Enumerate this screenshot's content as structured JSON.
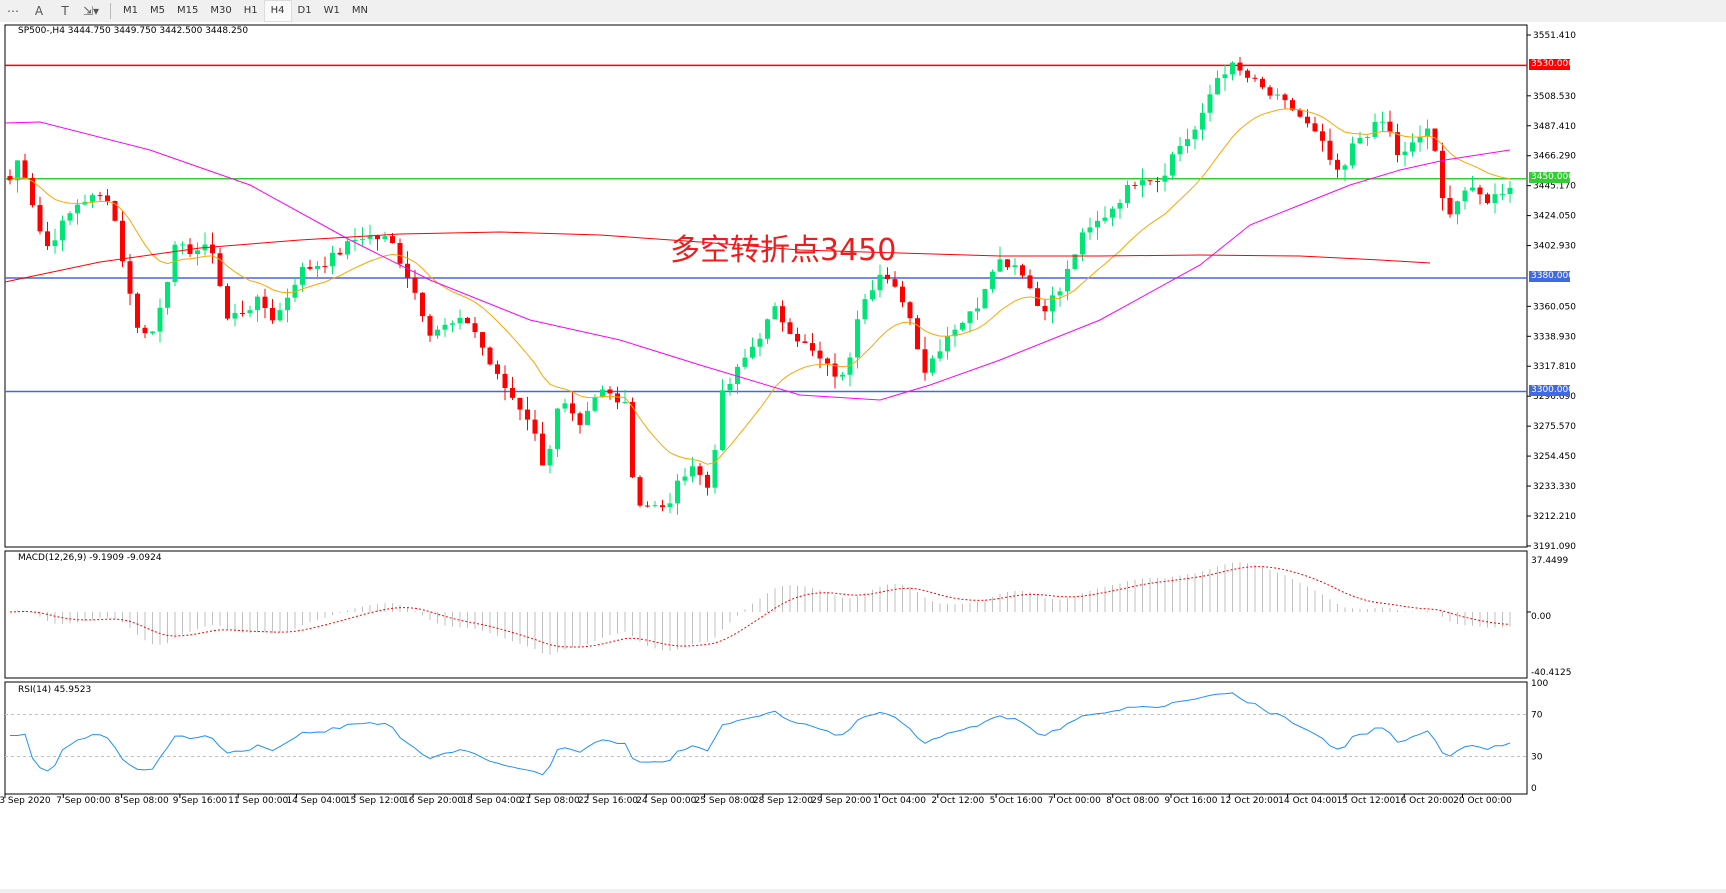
{
  "toolbar": {
    "icons": [
      "grid-f-icon",
      "text-a-icon",
      "text-label-icon",
      "arrows-icon"
    ],
    "timeframes": [
      "M1",
      "M5",
      "M15",
      "M30",
      "H1",
      "H4",
      "D1",
      "W1",
      "MN"
    ],
    "active_timeframe": "H4"
  },
  "main": {
    "title": "SP500-,H4  3444.750 3449.750 3442.500 3448.250",
    "annotation": "多空转折点3450",
    "annotation_color": "#ee1c1c",
    "price_ticks": [
      "3551.410",
      "3508.530",
      "3487.410",
      "3466.290",
      "3445.170",
      "3424.050",
      "3402.930",
      "3360.050",
      "3338.930",
      "3317.810",
      "3296.690",
      "3275.570",
      "3254.450",
      "3233.330",
      "3212.210",
      "3191.090"
    ],
    "levels": [
      {
        "price": "3530.000",
        "color": "#ff0000"
      },
      {
        "price": "3450.000",
        "color": "#32cd32"
      },
      {
        "price": "3380.000",
        "color": "#4169e1"
      },
      {
        "price": "3300.000",
        "color": "#4169e1"
      }
    ],
    "bull_color": "#00e676",
    "bear_color": "#ff0000"
  },
  "macd": {
    "title": "MACD(12,26,9) -9.1909 -9.0924",
    "ticks": [
      "37.4499",
      "0.00",
      "-40.4125"
    ]
  },
  "rsi": {
    "title": "RSI(14) 45.9523",
    "ticks": [
      "100",
      "70",
      "30",
      "0"
    ]
  },
  "time_axis": [
    "3 Sep 2020",
    "7 Sep 00:00",
    "8 Sep 08:00",
    "9 Sep 16:00",
    "11 Sep 00:00",
    "14 Sep 04:00",
    "15 Sep 12:00",
    "16 Sep 20:00",
    "18 Sep 04:00",
    "21 Sep 08:00",
    "22 Sep 16:00",
    "24 Sep 00:00",
    "25 Sep 08:00",
    "28 Sep 12:00",
    "29 Sep 20:00",
    "1 Oct 04:00",
    "2 Oct 12:00",
    "5 Oct 16:00",
    "7 Oct 00:00",
    "8 Oct 08:00",
    "9 Oct 16:00",
    "12 Oct 20:00",
    "14 Oct 04:00",
    "15 Oct 12:00",
    "16 Oct 20:00",
    "20 Oct 00:00"
  ]
}
